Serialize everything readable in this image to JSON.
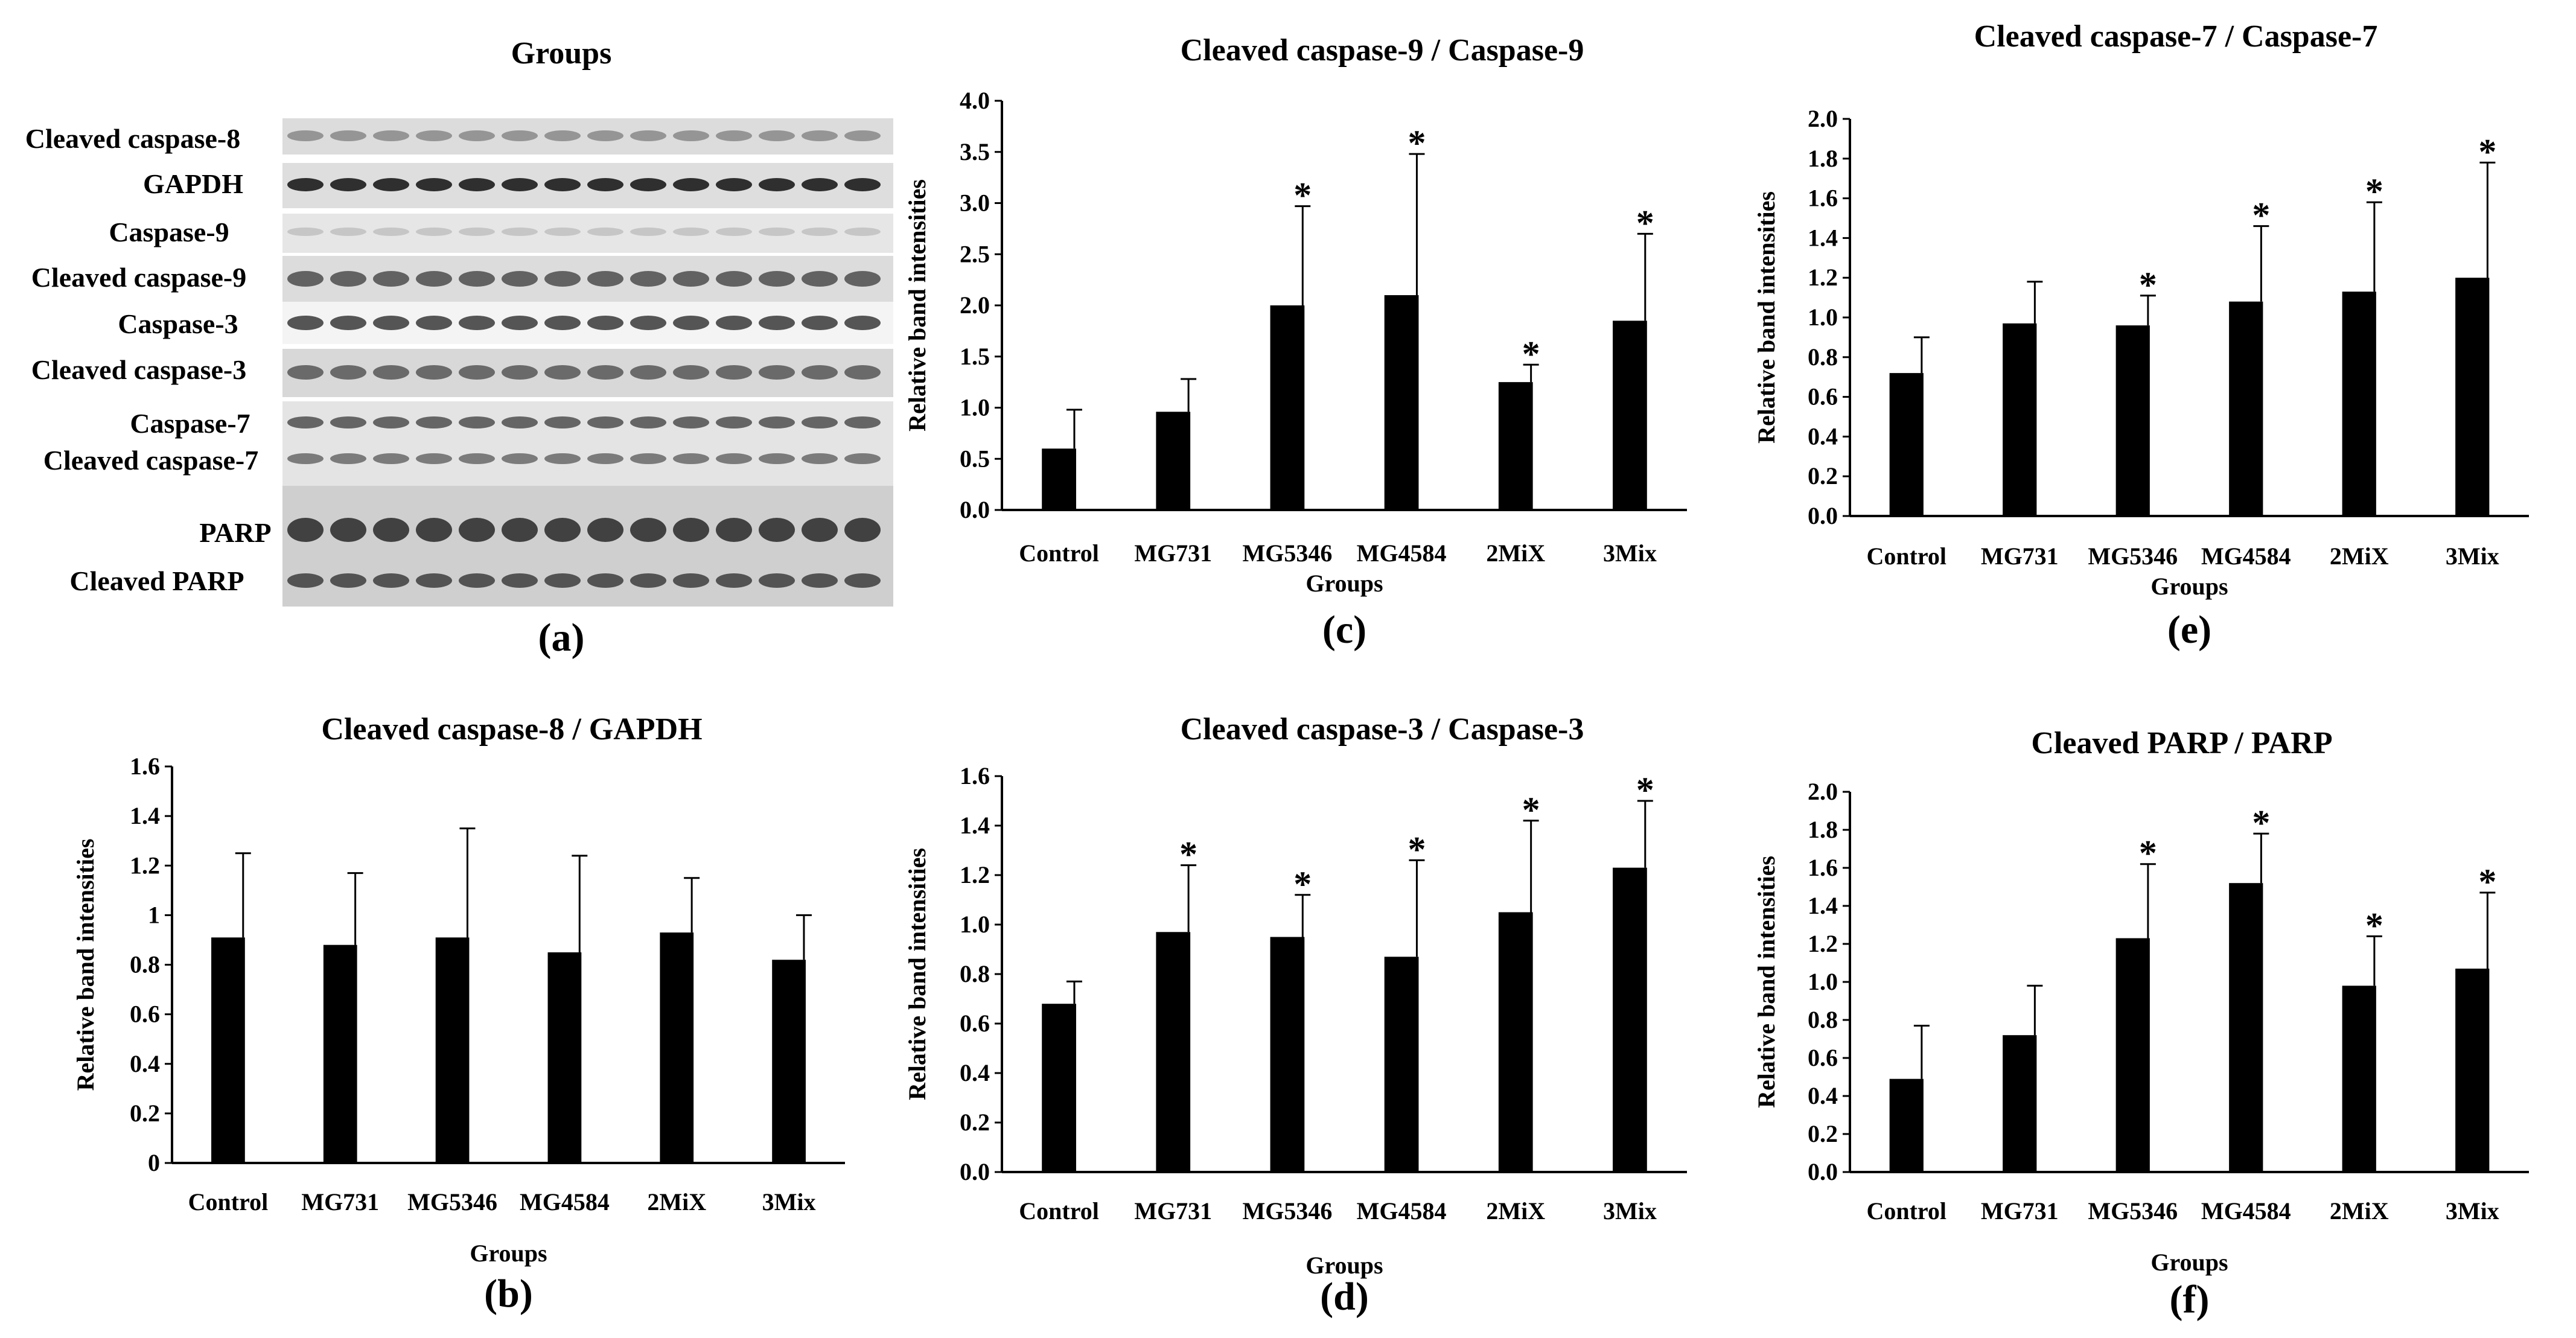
{
  "western_blot": {
    "title": "Groups",
    "panel_label": "(a)",
    "strip_labels": [
      "Cleaved caspase-8",
      "GAPDH",
      "Caspase-9",
      "Cleaved caspase-9",
      "Caspase-3",
      "Cleaved caspase-3",
      "Caspase-7",
      "Cleaved caspase-7",
      "PARP",
      "Cleaved PARP"
    ]
  },
  "chart_data": [
    {
      "id": "b",
      "panel_label": "(b)",
      "type": "bar",
      "title": "Cleaved caspase-8 / GAPDH",
      "xlabel": "Groups",
      "ylabel": "Relative band intensities",
      "categories": [
        "Control",
        "MG731",
        "MG5346",
        "MG4584",
        "2MiX",
        "3Mix"
      ],
      "values": [
        0.91,
        0.88,
        0.91,
        0.85,
        0.93,
        0.82
      ],
      "errors": [
        0.34,
        0.29,
        0.44,
        0.39,
        0.22,
        0.18
      ],
      "significant": [
        false,
        false,
        false,
        false,
        false,
        false
      ],
      "ylim": [
        0,
        1.6
      ],
      "yticks": [
        "0",
        "0.2",
        "0.4",
        "0.6",
        "0.8",
        "1",
        "1.2",
        "1.4",
        "1.6"
      ]
    },
    {
      "id": "c",
      "panel_label": "(c)",
      "type": "bar",
      "title": "Cleaved caspase-9 / Caspase-9",
      "xlabel": "Groups",
      "ylabel": "Relative band intensities",
      "categories": [
        "Control",
        "MG731",
        "MG5346",
        "MG4584",
        "2MiX",
        "3Mix"
      ],
      "values": [
        0.6,
        0.96,
        2.0,
        2.1,
        1.25,
        1.85
      ],
      "errors": [
        0.38,
        0.32,
        0.97,
        1.38,
        0.17,
        0.85
      ],
      "significant": [
        false,
        false,
        true,
        true,
        true,
        true
      ],
      "ylim": [
        0,
        4.0
      ],
      "yticks": [
        "0.0",
        "0.5",
        "1.0",
        "1.5",
        "2.0",
        "2.5",
        "3.0",
        "3.5",
        "4.0"
      ]
    },
    {
      "id": "d",
      "panel_label": "(d)",
      "type": "bar",
      "title": "Cleaved caspase-3 / Caspase-3",
      "xlabel": "Groups",
      "ylabel": "Relative band intensities",
      "categories": [
        "Control",
        "MG731",
        "MG5346",
        "MG4584",
        "2MiX",
        "3Mix"
      ],
      "values": [
        0.68,
        0.97,
        0.95,
        0.87,
        1.05,
        1.23
      ],
      "errors": [
        0.09,
        0.27,
        0.17,
        0.39,
        0.37,
        0.27
      ],
      "significant": [
        false,
        true,
        true,
        true,
        true,
        true
      ],
      "ylim": [
        0,
        1.6
      ],
      "yticks": [
        "0.0",
        "0.2",
        "0.4",
        "0.6",
        "0.8",
        "1.0",
        "1.2",
        "1.4",
        "1.6"
      ]
    },
    {
      "id": "e",
      "panel_label": "(e)",
      "type": "bar",
      "title": "Cleaved caspase-7 / Caspase-7",
      "xlabel": "Groups",
      "ylabel": "Relative band intensities",
      "categories": [
        "Control",
        "MG731",
        "MG5346",
        "MG4584",
        "2MiX",
        "3Mix"
      ],
      "values": [
        0.72,
        0.97,
        0.96,
        1.08,
        1.13,
        1.2
      ],
      "errors": [
        0.18,
        0.21,
        0.15,
        0.38,
        0.45,
        0.58
      ],
      "significant": [
        false,
        false,
        true,
        true,
        true,
        true
      ],
      "ylim": [
        0,
        2.0
      ],
      "yticks": [
        "0.0",
        "0.2",
        "0.4",
        "0.6",
        "0.8",
        "1.0",
        "1.2",
        "1.4",
        "1.6",
        "1.8",
        "2.0"
      ]
    },
    {
      "id": "f",
      "panel_label": "(f)",
      "type": "bar",
      "title": "Cleaved PARP / PARP",
      "xlabel": "Groups",
      "ylabel": "Relative band intensities",
      "categories": [
        "Control",
        "MG731",
        "MG5346",
        "MG4584",
        "2MiX",
        "3Mix"
      ],
      "values": [
        0.49,
        0.72,
        1.23,
        1.52,
        0.98,
        1.07
      ],
      "errors": [
        0.28,
        0.26,
        0.39,
        0.26,
        0.26,
        0.4
      ],
      "significant": [
        false,
        false,
        true,
        true,
        true,
        true
      ],
      "ylim": [
        0,
        2.0
      ],
      "yticks": [
        "0.0",
        "0.2",
        "0.4",
        "0.6",
        "0.8",
        "1.0",
        "1.2",
        "1.4",
        "1.6",
        "1.8",
        "2.0"
      ]
    }
  ],
  "significance_marker": "*",
  "colors": {
    "bar": "#000000",
    "axis": "#000000",
    "background": "#ffffff"
  }
}
